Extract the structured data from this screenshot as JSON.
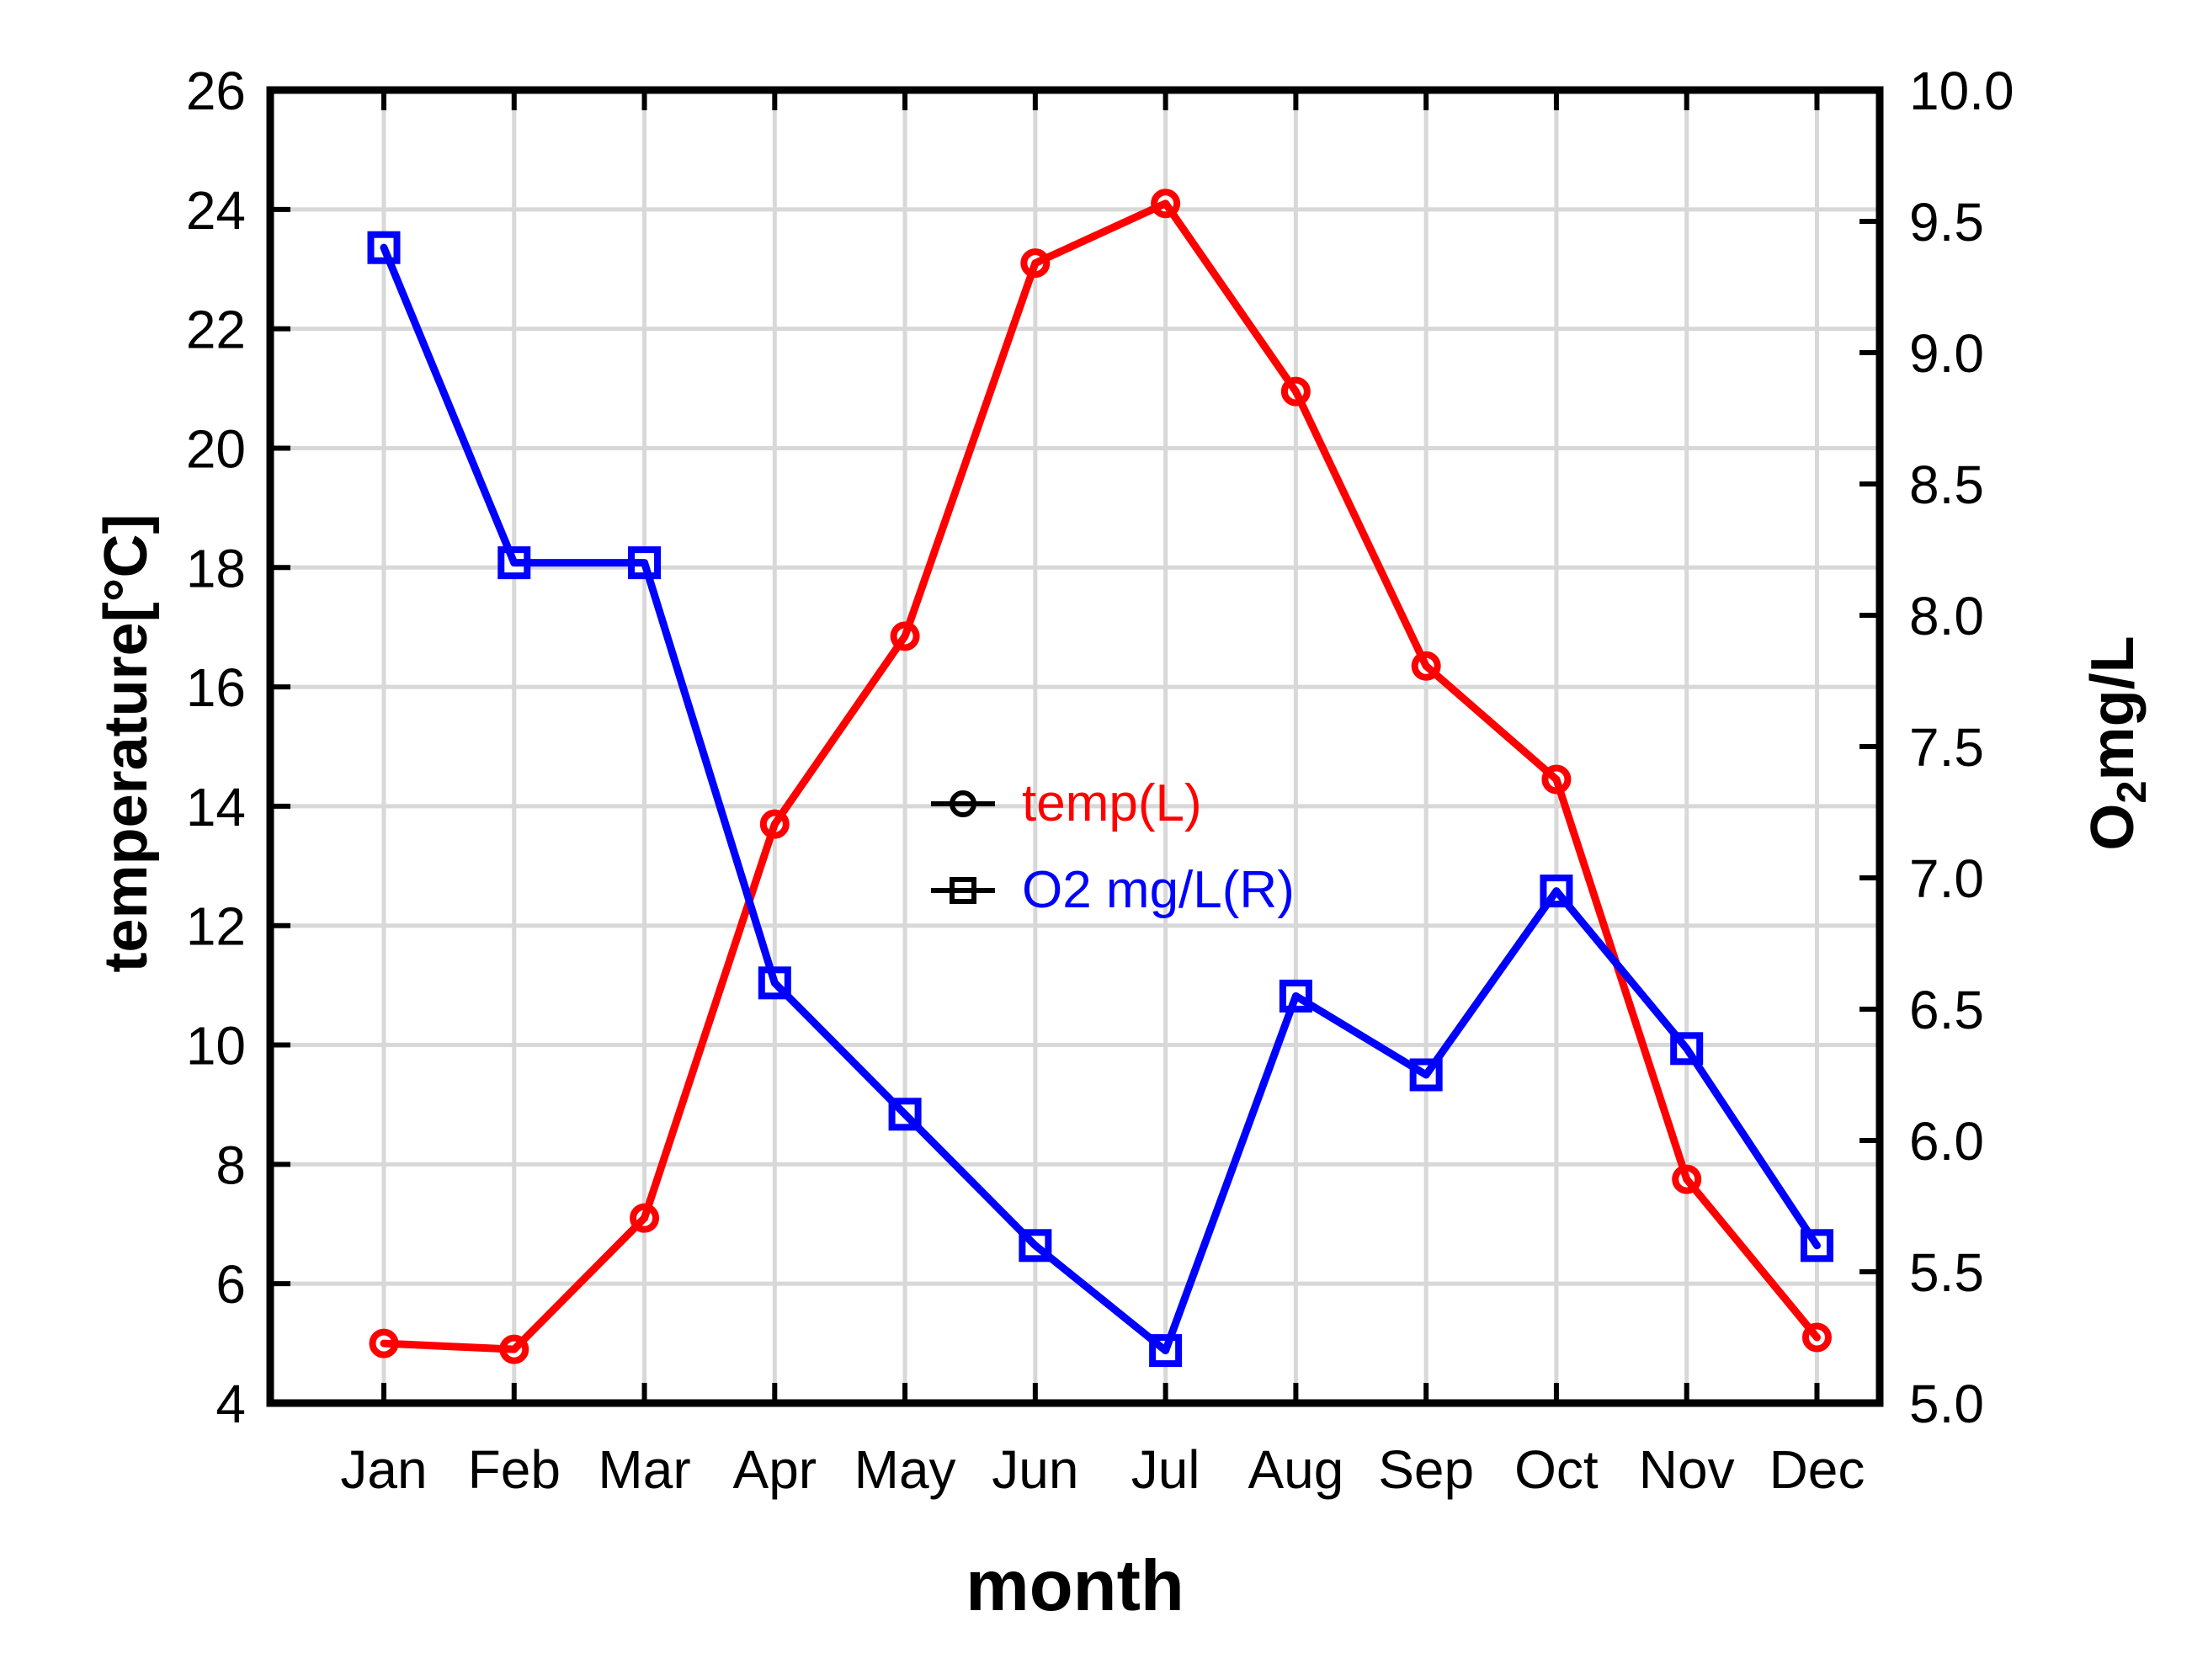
{
  "chart_data": {
    "type": "line",
    "title": "",
    "categories": [
      "Jan",
      "Feb",
      "Mar",
      "Apr",
      "May",
      "Jun",
      "Jul",
      "Aug",
      "Sep",
      "Oct",
      "Nov",
      "Dec"
    ],
    "series": [
      {
        "name": "temp(L)",
        "axis": "left",
        "color": "#ff0000",
        "marker": "circle",
        "values": [
          5.0,
          4.9,
          7.1,
          13.7,
          16.85,
          23.1,
          24.1,
          20.95,
          16.35,
          14.45,
          7.75,
          5.1
        ]
      },
      {
        "name": "O2 mg/L(R)",
        "axis": "right",
        "color": "#0000ff",
        "marker": "square",
        "values": [
          9.4,
          8.2,
          8.2,
          6.6,
          6.1,
          5.6,
          5.2,
          6.55,
          6.25,
          6.95,
          6.35,
          5.6
        ]
      }
    ],
    "xlabel": "month",
    "ylabel_left": "temperature[°C]",
    "ylabel_right": "O2mg/L",
    "ylim_left": [
      4,
      26
    ],
    "yticks_left": [
      "4",
      "6",
      "8",
      "10",
      "12",
      "14",
      "16",
      "18",
      "20",
      "22",
      "24",
      "26"
    ],
    "ylim_right": [
      5.0,
      10.0
    ],
    "yticks_right": [
      "5.0",
      "5.5",
      "6.0",
      "6.5",
      "7.0",
      "7.5",
      "8.0",
      "8.5",
      "9.0",
      "9.5",
      "10.0"
    ],
    "grid": true,
    "gridlines": "light gray at every month (vertical) and every 2 degrees C (horizontal)",
    "legend_position": "center of plot"
  },
  "axis_titles": {
    "left_title": "temperature[°C]",
    "bottom_title": "month",
    "right_title_main": "O",
    "right_title_sub": "2",
    "right_title_rest": "mg/L"
  },
  "legend": {
    "items": [
      {
        "label": "temp(L)",
        "text_color": "#ff0000",
        "marker": "circle-icon"
      },
      {
        "label": "O2 mg/L(R)",
        "text_color": "#0000ff",
        "marker": "square-icon"
      }
    ]
  },
  "colors": {
    "temp_series": "#ff0000",
    "o2_series": "#0000ff",
    "gridline": "#d8d8d8",
    "axis_frame": "#000000",
    "background": "#ffffff",
    "legend_marker": "#000000"
  }
}
